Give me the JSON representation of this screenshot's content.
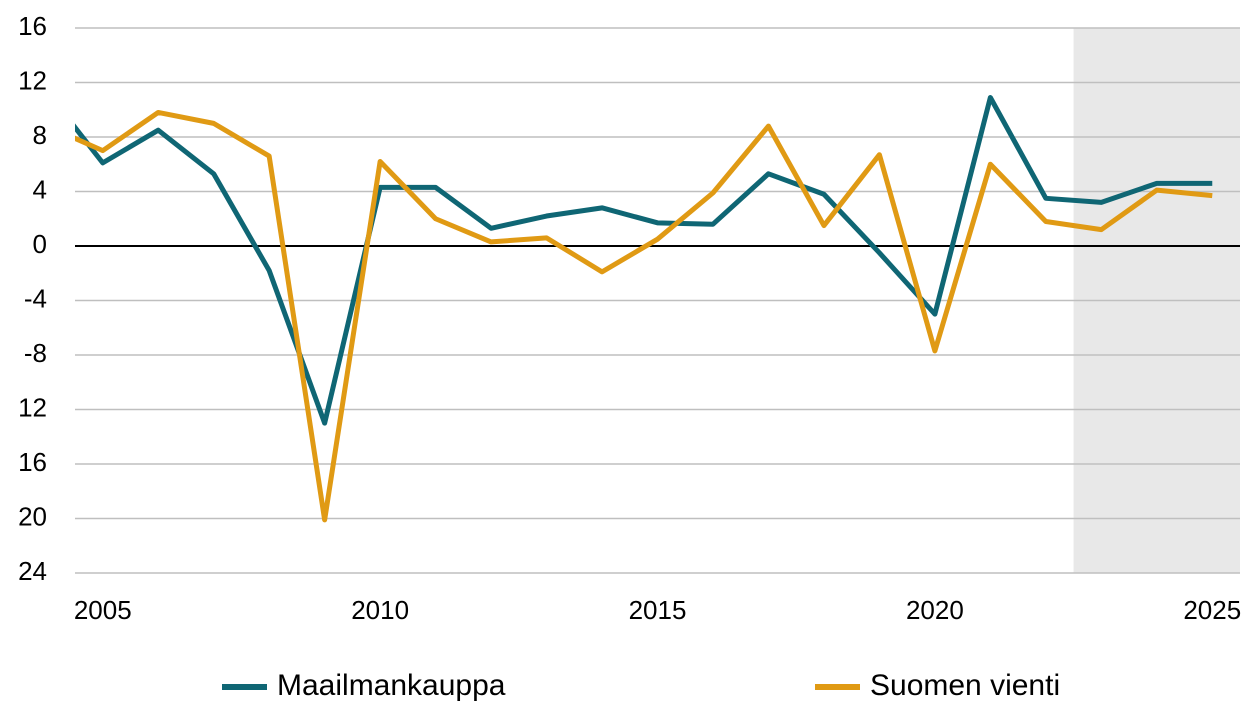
{
  "chart_data": {
    "type": "line",
    "x": [
      2004,
      2005,
      2006,
      2007,
      2008,
      2009,
      2010,
      2011,
      2012,
      2013,
      2014,
      2015,
      2016,
      2017,
      2018,
      2019,
      2020,
      2021,
      2022,
      2023,
      2024,
      2025
    ],
    "series": [
      {
        "name": "Maailmankauppa",
        "color": "#0f6674",
        "values": [
          11.3,
          6.1,
          8.5,
          5.3,
          -1.8,
          -13.0,
          4.3,
          4.3,
          1.3,
          2.2,
          2.8,
          1.7,
          1.6,
          5.3,
          3.8,
          -0.5,
          -5.0,
          10.9,
          3.5,
          3.2,
          4.6,
          4.6
        ]
      },
      {
        "name": "Suomen vienti",
        "color": "#e09a14",
        "values": [
          8.8,
          7.0,
          9.8,
          9.0,
          6.6,
          -20.1,
          6.2,
          2.0,
          0.3,
          0.6,
          -1.9,
          0.5,
          3.9,
          8.8,
          1.5,
          6.7,
          -7.7,
          6.0,
          1.8,
          1.2,
          4.1,
          3.7
        ]
      }
    ],
    "xlim": [
      2004.5,
      2025.5
    ],
    "xticks": [
      2005,
      2010,
      2015,
      2020,
      2025
    ],
    "ylim": [
      -24,
      16
    ],
    "yticks": [
      16,
      12,
      8,
      4,
      0,
      -4,
      -8,
      {
        "value": -12,
        "label": "12"
      },
      {
        "value": -16,
        "label": "16"
      },
      {
        "value": -20,
        "label": "20"
      },
      {
        "value": -24,
        "label": "24"
      }
    ],
    "grid": true,
    "shaded_from": 2022.5,
    "legend": "bottom"
  }
}
